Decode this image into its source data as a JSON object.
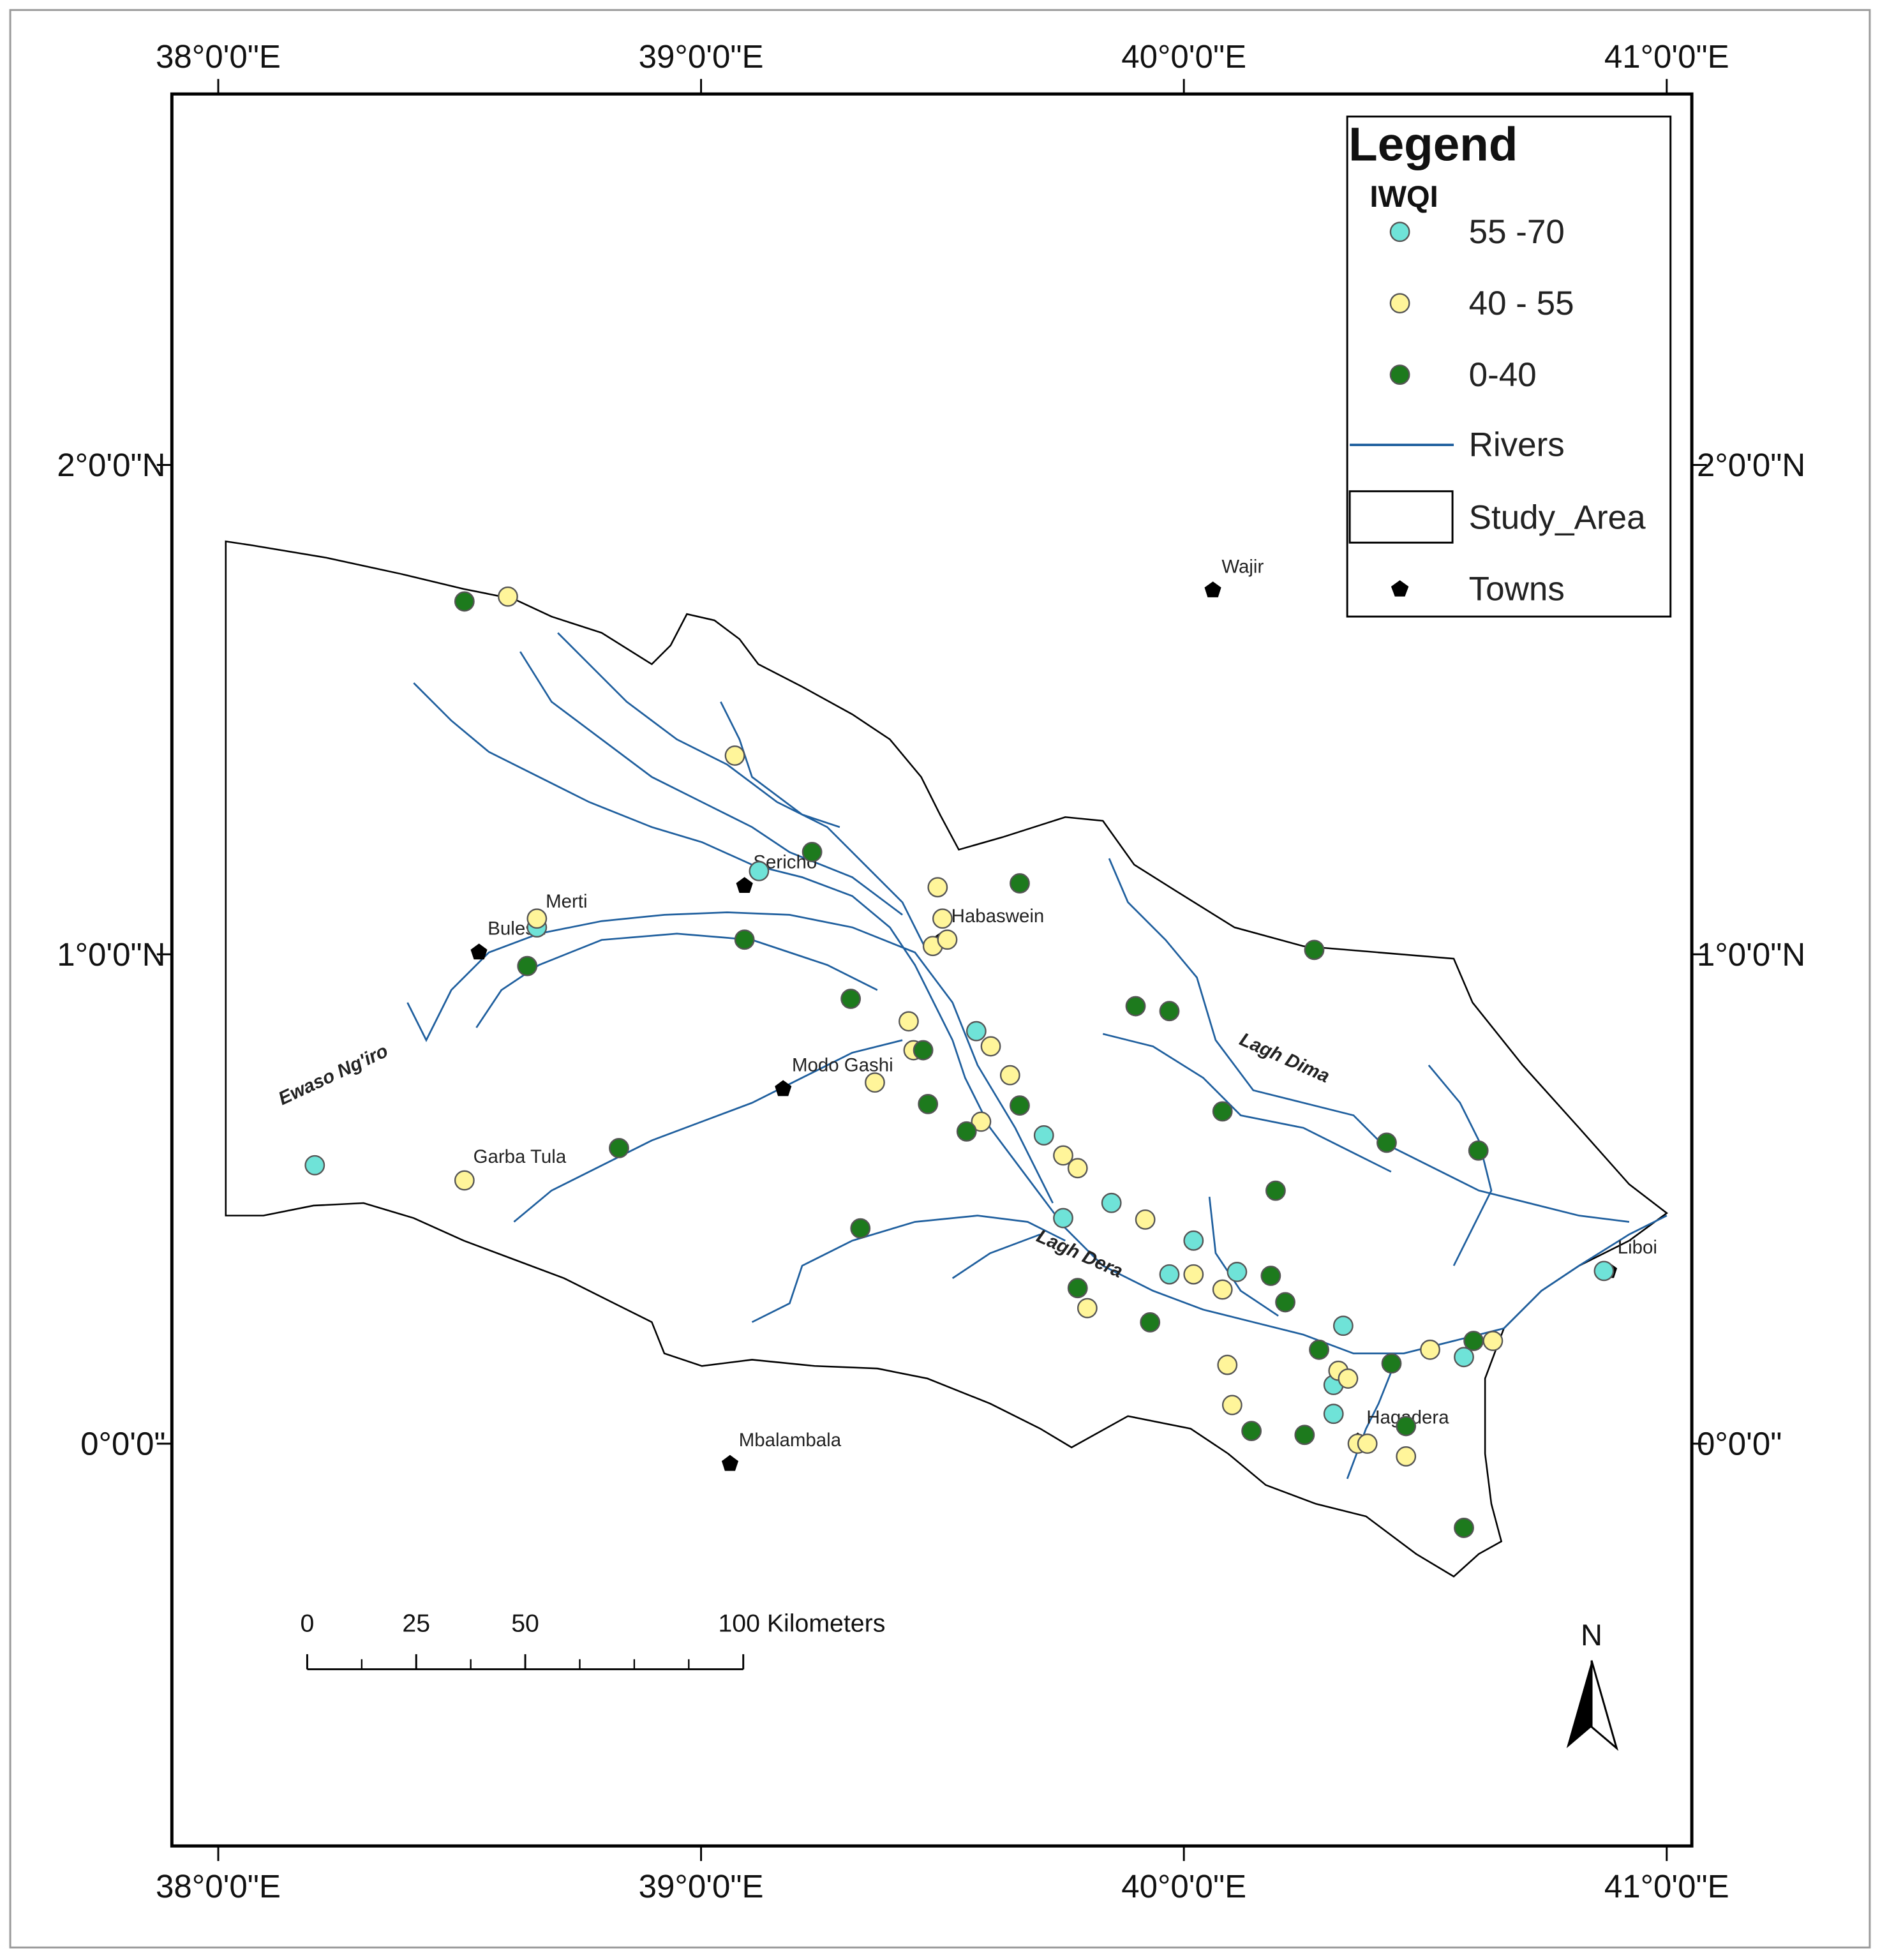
{
  "map": {
    "xlim": [
      37.904,
      41.052
    ],
    "ylim": [
      -0.822,
      2.758
    ],
    "xticks": [
      {
        "value": 38,
        "label": "38°0'0\"E"
      },
      {
        "value": 39,
        "label": "39°0'0\"E"
      },
      {
        "value": 40,
        "label": "40°0'0\"E"
      },
      {
        "value": 41,
        "label": "41°0'0\"E"
      }
    ],
    "yticks": [
      {
        "value": 0,
        "label": "0°0'0\""
      },
      {
        "value": 1,
        "label": "1°0'0\"N"
      },
      {
        "value": 2,
        "label": "2°0'0\"N"
      }
    ],
    "legend": {
      "title": "Legend",
      "subtitle": "IWQI",
      "classes": [
        {
          "name": "55 -70",
          "color": "#6fe3d8",
          "lon": [
            38.2,
            39.12,
            38.66,
            39.57,
            39.71,
            39.75,
            39.85,
            40.02,
            39.97,
            40.11,
            40.33,
            40.31,
            40.31,
            40.58,
            40.87
          ],
          "lat": [
            0.569,
            1.17,
            1.055,
            0.843,
            0.63,
            0.461,
            0.492,
            0.415,
            0.346,
            0.351,
            0.241,
            0.12,
            0.061,
            0.177,
            0.353
          ]
        },
        {
          "name": "40 - 55",
          "color": "#fff59a",
          "lon": [
            38.6,
            39.07,
            38.66,
            39.49,
            39.5,
            39.48,
            39.51,
            39.43,
            39.44,
            39.6,
            39.64,
            39.36,
            39.58,
            39.75,
            39.78,
            39.92,
            40.02,
            40.08,
            39.8,
            40.09,
            40.1,
            40.32,
            40.34,
            40.36,
            40.38,
            40.46,
            40.51,
            40.64,
            38.51
          ],
          "lat": [
            1.731,
            1.406,
            1.073,
            1.137,
            1.073,
            1.017,
            1.03,
            0.863,
            0.804,
            0.812,
            0.753,
            0.738,
            0.658,
            0.589,
            0.563,
            0.458,
            0.346,
            0.315,
            0.277,
            0.161,
            0.079,
            0.149,
            0.133,
            0,
            0,
            -0.026,
            0.192,
            0.21,
            0.538
          ]
        },
        {
          "name": "0-40",
          "color": "#1d7a1d",
          "lon": [
            38.51,
            39.23,
            39.66,
            39.09,
            38.64,
            39.31,
            39.46,
            39.47,
            39.55,
            39.66,
            40.27,
            39.9,
            39.97,
            40.08,
            40.42,
            40.61,
            40.19,
            40.18,
            40.21,
            39.78,
            39.93,
            40.28,
            40.43,
            40.6,
            40.46,
            40.14,
            40.25,
            40.58,
            38.83,
            39.33
          ],
          "lat": [
            1.721,
            1.209,
            1.145,
            1.03,
            0.976,
            0.909,
            0.804,
            0.694,
            0.638,
            0.691,
            1.009,
            0.894,
            0.884,
            0.679,
            0.615,
            0.599,
            0.517,
            0.343,
            0.289,
            0.318,
            0.248,
            0.192,
            0.164,
            0.21,
            0.036,
            0.026,
            0.018,
            -0.172,
            0.604,
            0.44
          ]
        }
      ],
      "rivers": "Rivers",
      "study_area": "Study_Area",
      "towns": "Towns"
    },
    "towns": {
      "names": [
        "Wajir",
        "Sericho",
        "Merti",
        "Bulesa",
        "Habaswein",
        "Modo Gashi",
        "Garba Tula",
        "Mbalambala",
        "Hagadera",
        "Liboi"
      ],
      "lon": [
        40.06,
        39.09,
        38.66,
        38.54,
        39.5,
        39.17,
        38.51,
        39.06,
        40.36,
        40.88
      ],
      "lat": [
        1.744,
        1.14,
        1.06,
        1.004,
        1.03,
        0.725,
        0.538,
        -0.041,
        0.005,
        0.353
      ]
    },
    "river_labels": [
      "Ewaso Ng'iro",
      "Lagh Dima",
      "Lagh Dera"
    ],
    "scale_bar": {
      "ticks": [
        0,
        25,
        50,
        {
          "value": 100,
          "label": "100 Kilometers"
        }
      ]
    },
    "north": "N"
  }
}
